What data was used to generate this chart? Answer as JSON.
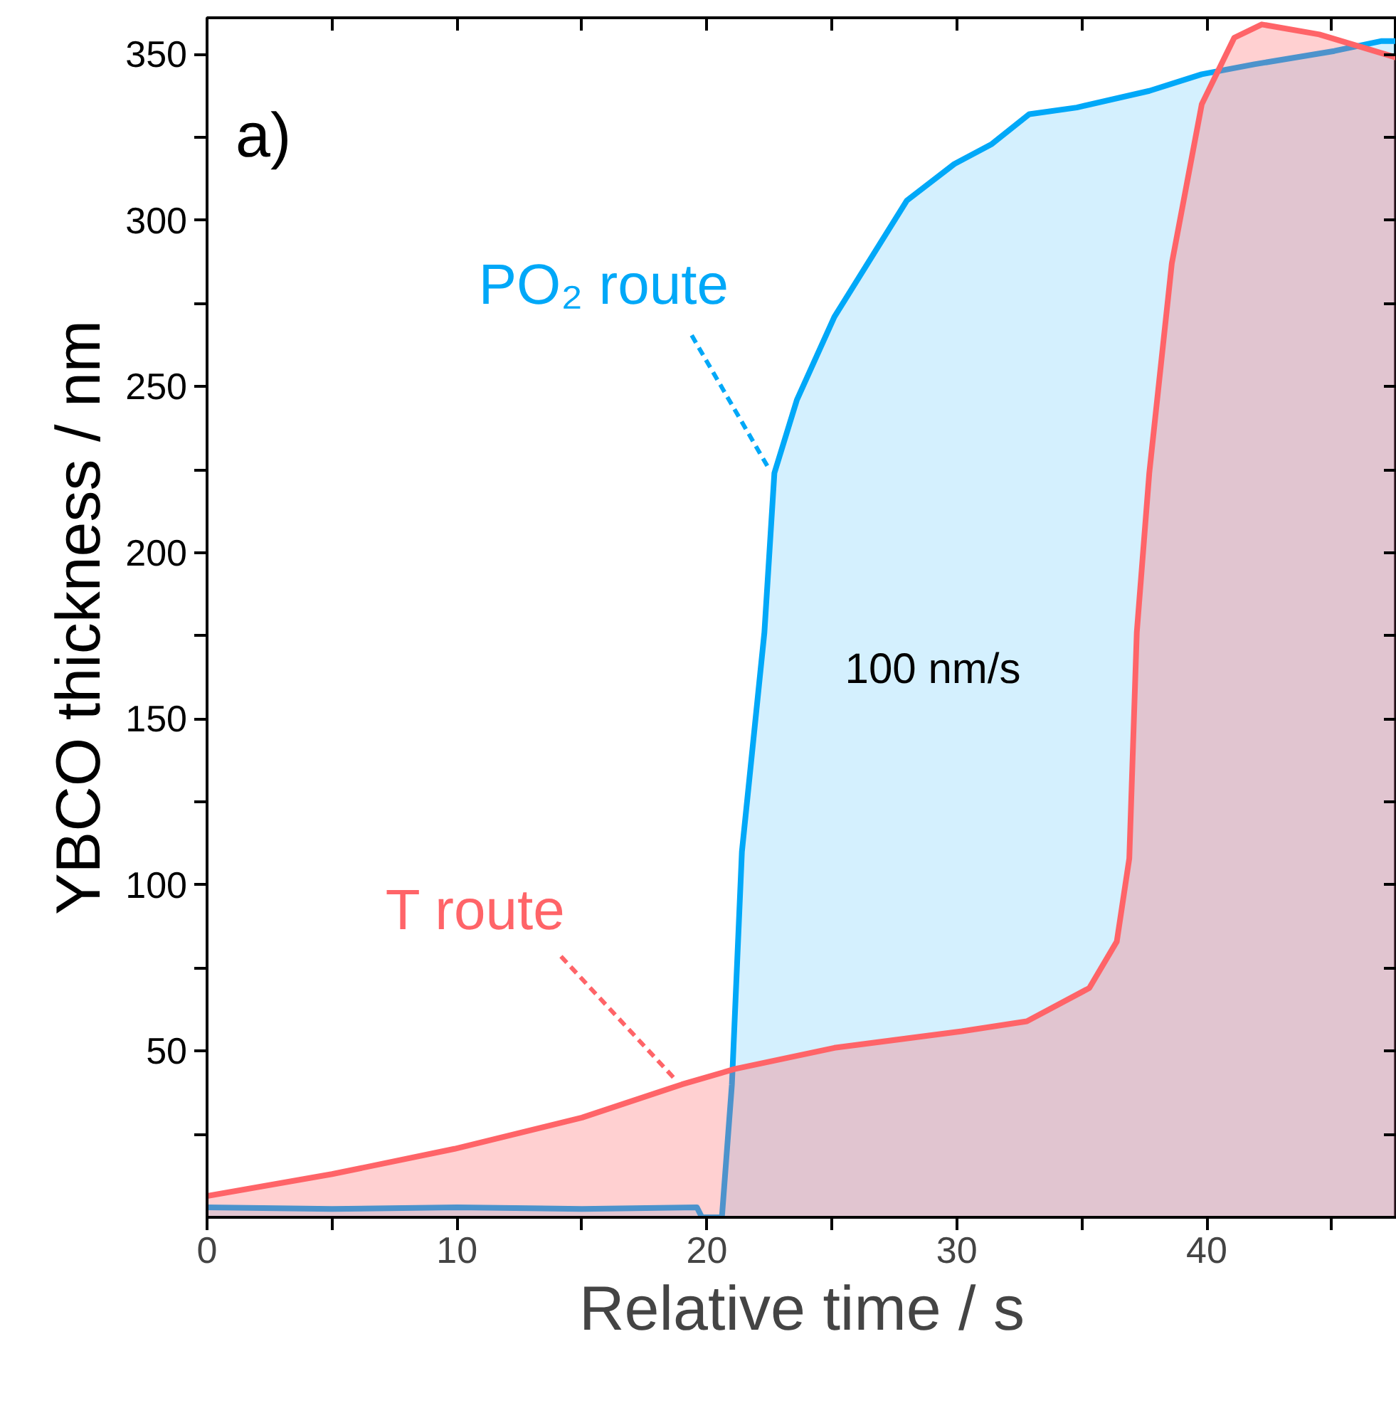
{
  "chart_data": {
    "type": "area",
    "xlabel": "Relative time / s",
    "ylabel": "YBCO thickness / nm",
    "xlim": [
      0,
      47.6
    ],
    "ylim": [
      0,
      361
    ],
    "xticks": [
      0,
      {
        "value": 5,
        "label": null
      },
      10,
      {
        "value": 15,
        "label": null
      },
      20,
      {
        "value": 25,
        "label": null
      },
      30,
      {
        "value": 35,
        "label": null
      },
      40,
      {
        "value": 45,
        "label": null
      }
    ],
    "yticks": [
      {
        "value": 25,
        "label": null
      },
      50,
      {
        "value": 75,
        "label": null
      },
      100,
      {
        "value": 125,
        "label": null
      },
      150,
      {
        "value": 175,
        "label": null
      },
      200,
      {
        "value": 225,
        "label": null
      },
      250,
      {
        "value": 275,
        "label": null
      },
      300,
      {
        "value": 325,
        "label": null
      },
      350
    ],
    "grid": false,
    "series": [
      {
        "name": "PO₂ route",
        "color": "#00a8f8",
        "x": [
          0,
          5,
          10,
          15,
          19.6,
          19.8,
          20.6,
          21.0,
          21.4,
          22.3,
          22.7,
          23.6,
          25.1,
          28.0,
          29.9,
          31.4,
          32.9,
          34.8,
          37.7,
          39.8,
          41.9,
          45.1,
          47.0,
          47.6
        ],
        "values": [
          3,
          2.5,
          3,
          2.5,
          3,
          0,
          0,
          40,
          110,
          176,
          224,
          246,
          271,
          306,
          317,
          323,
          332,
          334,
          339,
          344,
          347,
          351,
          354,
          354
        ]
      },
      {
        "name": "T route",
        "color": "#ff6468",
        "x": [
          0,
          5,
          9.9,
          15,
          19.0,
          21.1,
          25.1,
          30.2,
          32.8,
          35.3,
          36.4,
          36.9,
          37.2,
          37.7,
          38.6,
          39.8,
          41.1,
          42.2,
          44.5,
          47.6
        ],
        "values": [
          6.4,
          13,
          20.6,
          30,
          40,
          44.6,
          51,
          56,
          59,
          69,
          83,
          108,
          176,
          224,
          287,
          335,
          355,
          359,
          356,
          349
        ]
      }
    ],
    "annotations": [
      "a)",
      "100 nm/s"
    ]
  }
}
